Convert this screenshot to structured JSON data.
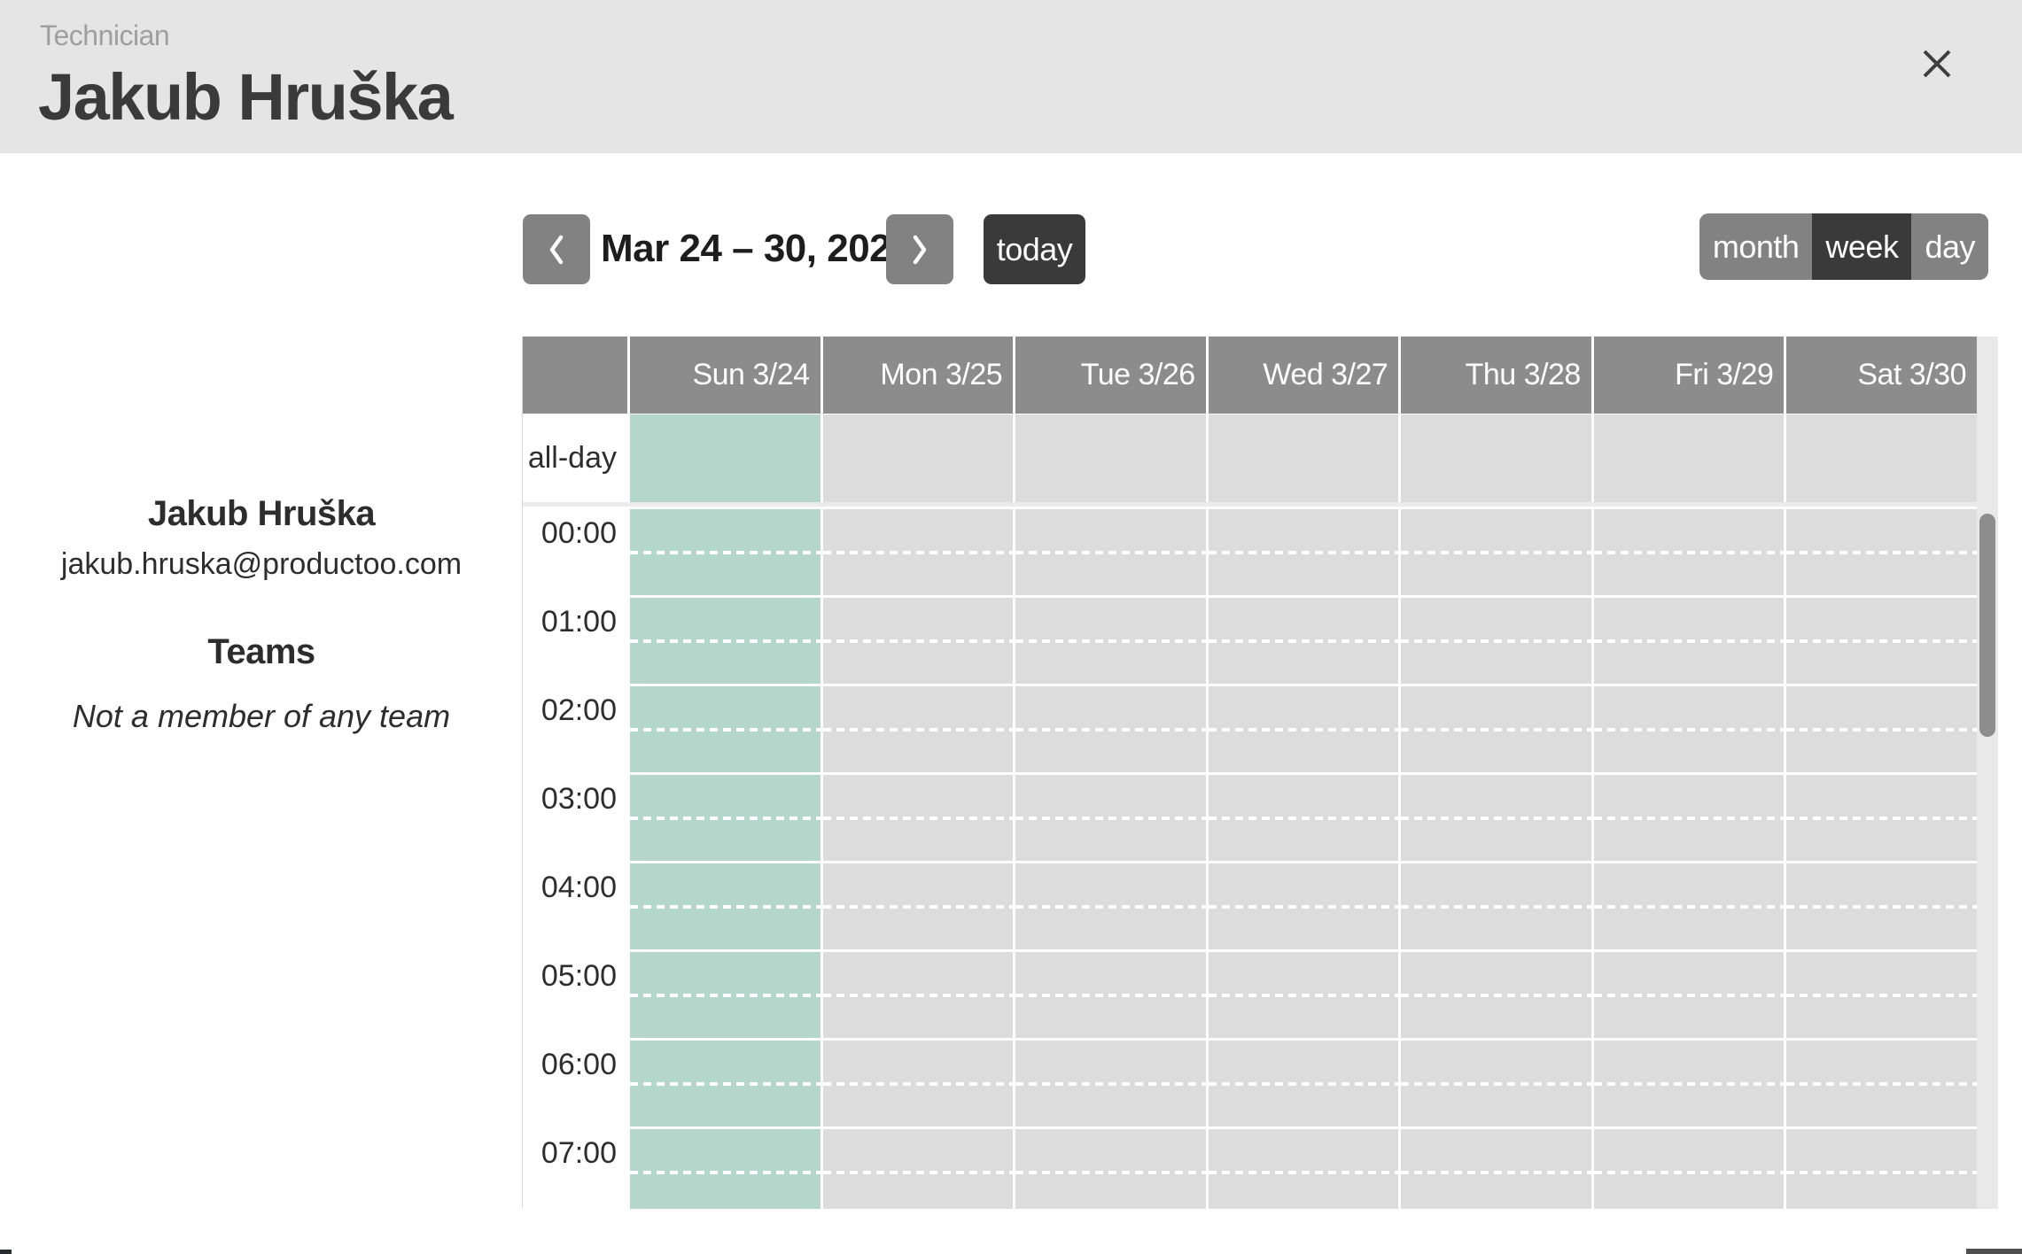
{
  "banner": {
    "eyebrow": "Technician",
    "title": "Jakub Hruška"
  },
  "profile": {
    "name": "Jakub Hruška",
    "email": "jakub.hruska@productoo.com",
    "teams_heading": "Teams",
    "teams_empty": "Not a member of any team"
  },
  "toolbar": {
    "title": "Mar 24 – 30, 2024",
    "today_label": "today",
    "views": [
      {
        "label": "month",
        "active": false
      },
      {
        "label": "week",
        "active": true
      },
      {
        "label": "day",
        "active": false
      }
    ]
  },
  "calendar": {
    "all_day_label": "all-day",
    "day_headers": [
      {
        "label": "Sun 3/24",
        "today": true
      },
      {
        "label": "Mon 3/25",
        "today": false
      },
      {
        "label": "Tue 3/26",
        "today": false
      },
      {
        "label": "Wed 3/27",
        "today": false
      },
      {
        "label": "Thu 3/28",
        "today": false
      },
      {
        "label": "Fri 3/29",
        "today": false
      },
      {
        "label": "Sat 3/30",
        "today": false
      }
    ],
    "hours": [
      "00:00",
      "01:00",
      "02:00",
      "03:00",
      "04:00",
      "05:00",
      "06:00",
      "07:00"
    ],
    "colors": {
      "today_highlight": "#b5d7cb",
      "cell_gray": "#dcdcdc",
      "header_cell": "#8c8c8c",
      "dark_button": "#3a3a3a",
      "gray_button": "#828282",
      "banner_bg": "#e5e5e5"
    }
  }
}
